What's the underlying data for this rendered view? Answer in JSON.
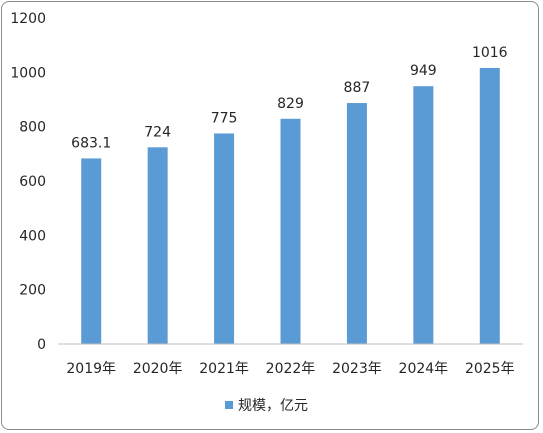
{
  "chart_data": {
    "type": "bar",
    "categories": [
      "2019年",
      "2020年",
      "2021年",
      "2022年",
      "2023年",
      "2024年",
      "2025年"
    ],
    "series": [
      {
        "name": "规模，亿元",
        "values": [
          683.1,
          724,
          775,
          829,
          887,
          949,
          1016
        ],
        "data_labels": [
          "683.1",
          "724",
          "775",
          "829",
          "887",
          "949",
          "1016"
        ]
      }
    ],
    "y_ticks": [
      "0",
      "200",
      "400",
      "600",
      "800",
      "1000",
      "1200"
    ],
    "ylim": [
      0,
      1200
    ],
    "grid": false,
    "legend_position": "bottom",
    "colors": {
      "bar": "#5B9BD5",
      "axis": "#bfbfbf",
      "text": "#262626",
      "border": "#8c8c8c"
    }
  }
}
